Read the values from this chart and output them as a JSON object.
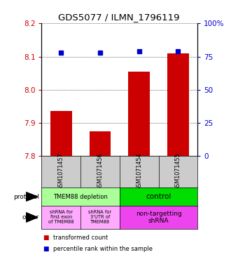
{
  "title": "GDS5077 / ILMN_1796119",
  "samples": [
    "GSM1071457",
    "GSM1071456",
    "GSM1071454",
    "GSM1071455"
  ],
  "bar_values": [
    7.935,
    7.875,
    8.055,
    8.11
  ],
  "dot_values": [
    78,
    78,
    79,
    79
  ],
  "ylim_left": [
    7.8,
    8.2
  ],
  "ylim_right": [
    0,
    100
  ],
  "yticks_left": [
    7.8,
    7.9,
    8.0,
    8.1,
    8.2
  ],
  "yticks_right": [
    0,
    25,
    50,
    75,
    100
  ],
  "bar_color": "#cc0000",
  "dot_color": "#0000cc",
  "bar_width": 0.55,
  "protocol_labels": [
    "TMEM88 depletion",
    "control"
  ],
  "protocol_colors": [
    "#aaff99",
    "#00dd00"
  ],
  "other_labels": [
    "shRNA for\nfirst exon\nof TMEM88",
    "shRNA for\n3'UTR of\nTMEM88",
    "non-targetting\nshRNA"
  ],
  "other_colors": [
    "#ffaaff",
    "#ffaaff",
    "#ee44ee"
  ],
  "legend_red": "transformed count",
  "legend_blue": "percentile rank within the sample",
  "background_color": "#ffffff"
}
